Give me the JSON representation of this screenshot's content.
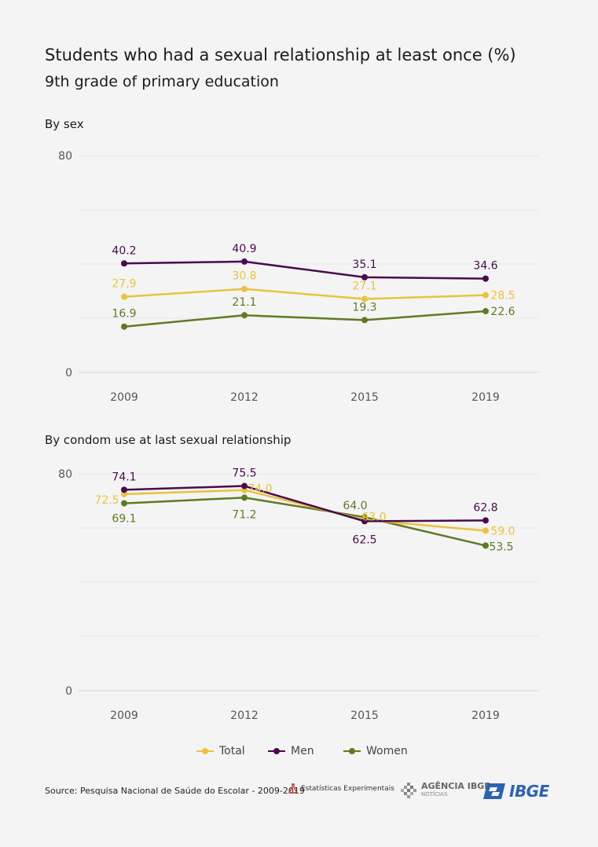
{
  "header": {
    "title": "Students who had a sexual relationship at least once (%)",
    "subtitle": "9th grade of primary education"
  },
  "colors": {
    "total": "#e8c33e",
    "men": "#4a0a4f",
    "women": "#5f7a23"
  },
  "chart_data": [
    {
      "type": "line",
      "title": "By sex",
      "x": [
        "2009",
        "2012",
        "2015",
        "2019"
      ],
      "ylim": [
        0,
        80
      ],
      "y_ticks": [
        "0",
        "80"
      ],
      "grid": true,
      "series": [
        {
          "name": "Total",
          "color": "#e8c33e",
          "values": [
            27.9,
            30.8,
            27.1,
            28.5
          ],
          "labels": [
            "27,9",
            "30.8",
            "27.1",
            "28.5"
          ]
        },
        {
          "name": "Men",
          "color": "#4a0a4f",
          "values": [
            40.2,
            40.9,
            35.1,
            34.6
          ],
          "labels": [
            "40.2",
            "40.9",
            "35.1",
            "34.6"
          ]
        },
        {
          "name": "Women",
          "color": "#5f7a23",
          "values": [
            16.9,
            21.1,
            19.3,
            22.6
          ],
          "labels": [
            "16.9",
            "21.1",
            "19.3",
            "22.6"
          ]
        }
      ]
    },
    {
      "type": "line",
      "title": "By condom use at last sexual relationship",
      "x": [
        "2009",
        "2012",
        "2015",
        "2019"
      ],
      "ylim": [
        0,
        80
      ],
      "y_ticks": [
        "0",
        "80"
      ],
      "grid": true,
      "series": [
        {
          "name": "Total",
          "color": "#e8c33e",
          "values": [
            72.5,
            74.0,
            63.0,
            59.0
          ],
          "labels": [
            "72.5",
            "74.0",
            "63.0",
            "59.0"
          ]
        },
        {
          "name": "Men",
          "color": "#4a0a4f",
          "values": [
            74.1,
            75.5,
            62.5,
            62.8
          ],
          "labels": [
            "74.1",
            "75.5",
            "62.5",
            "62.8"
          ]
        },
        {
          "name": "Women",
          "color": "#5f7a23",
          "values": [
            69.1,
            71.2,
            64.0,
            53.5
          ],
          "labels": [
            "69.1",
            "71.2",
            "64.0",
            "53.5"
          ]
        }
      ]
    }
  ],
  "legend": {
    "items": [
      {
        "label": "Total",
        "color": "#e8c33e"
      },
      {
        "label": "Men",
        "color": "#4a0a4f"
      },
      {
        "label": "Women",
        "color": "#5f7a23"
      }
    ]
  },
  "footer": {
    "source": "Source: Pesquisa Nacional de Saúde do Escolar - 2009-2019",
    "logo_experimental": "Estatísticas Experimentais",
    "logo_agencia_main": "AGÊNCIA IBGE",
    "logo_agencia_sub": "NOTÍCIAS",
    "logo_ibge": "IBGE"
  }
}
